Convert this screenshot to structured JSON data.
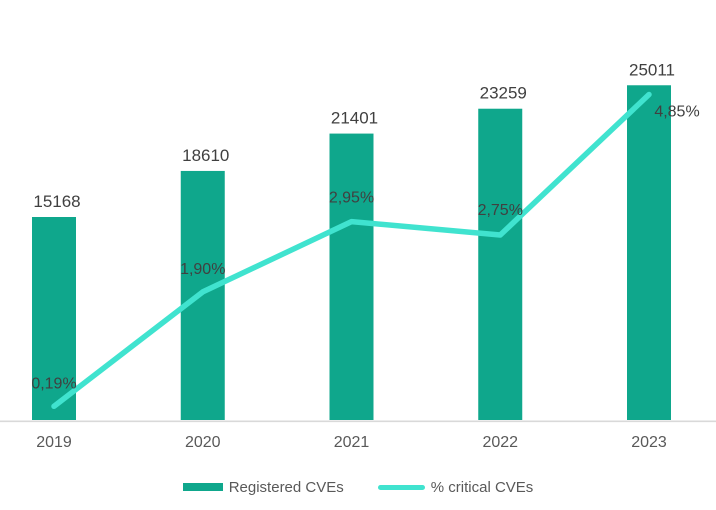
{
  "chart_data": {
    "type": "bar+line",
    "categories": [
      "2019",
      "2020",
      "2021",
      "2022",
      "2023"
    ],
    "series": [
      {
        "name": "Registered CVEs",
        "type": "bar",
        "color": "#0FA78C",
        "values": [
          15168,
          18610,
          21401,
          23259,
          25011
        ],
        "labels": [
          "15168",
          "18610",
          "21401",
          "23259",
          "25011"
        ]
      },
      {
        "name": "% critical CVEs",
        "type": "line",
        "color": "#40E3CF",
        "values": [
          0.19,
          1.9,
          2.95,
          2.75,
          4.85
        ],
        "labels": [
          "0,19%",
          "1,90%",
          "2,95%",
          "2,75%",
          "4,85%"
        ]
      }
    ],
    "legend_position": "bottom",
    "label_decimal_separator": ",",
    "axes": {
      "x_labels_shown": true,
      "y_axis_shown": false,
      "gridlines": false,
      "primary_axis_approx_max": 30000,
      "secondary_axis_unit": "percent"
    }
  },
  "colors": {
    "bar": "#0FA78C",
    "line": "#40E3CF",
    "value_label": "#404040",
    "category_label": "#595959",
    "axis_line": "#D9D9D9",
    "background": "#FFFFFF"
  }
}
